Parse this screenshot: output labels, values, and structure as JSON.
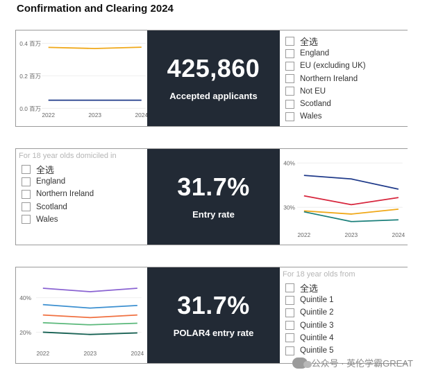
{
  "page": {
    "title": "Confirmation and Clearing 2024"
  },
  "row1": {
    "kpi": {
      "value": "425,860",
      "label": "Accepted applicants"
    },
    "slicer": {
      "items": [
        "全选",
        "England",
        "EU (excluding UK)",
        "Northern Ireland",
        "Not EU",
        "Scotland",
        "Wales"
      ]
    }
  },
  "row2": {
    "slicer": {
      "heading": "For 18 year olds domiciled in",
      "items": [
        "全选",
        "England",
        "Northern Ireland",
        "Scotland",
        "Wales"
      ]
    },
    "kpi": {
      "value": "31.7%",
      "label": "Entry rate"
    }
  },
  "row3": {
    "kpi": {
      "value": "31.7%",
      "label": "POLAR4 entry rate"
    },
    "slicer": {
      "heading": "For 18 year olds from",
      "items": [
        "全选",
        "Quintile 1",
        "Quintile 2",
        "Quintile 3",
        "Quintile 4",
        "Quintile 5"
      ]
    }
  },
  "watermark": {
    "text": "公众号 · 英伦学霸GREAT"
  },
  "chart_data": [
    {
      "type": "line",
      "x": [
        "2022",
        "2023",
        "2024"
      ],
      "yticks": [
        "0.4 百万",
        "0.2 百万",
        "0.0 百万"
      ],
      "ylim": [
        0,
        0.42
      ],
      "series": [
        {
          "color": "#f0a818",
          "values": [
            0.375,
            0.368,
            0.376
          ]
        },
        {
          "color": "#1f3a8a",
          "values": [
            0.05,
            0.05,
            0.05
          ]
        }
      ]
    },
    {
      "type": "line",
      "x": [
        "2022",
        "2023",
        "2024"
      ],
      "yticks": [
        "40%",
        "30%"
      ],
      "ylim": [
        25,
        41
      ],
      "series": [
        {
          "color": "#1f3a8a",
          "values": [
            37.2,
            36.4,
            34.1
          ]
        },
        {
          "color": "#d7263d",
          "values": [
            32.6,
            30.6,
            32.2
          ]
        },
        {
          "color": "#f0a818",
          "values": [
            29.2,
            28.5,
            29.6
          ]
        },
        {
          "color": "#1a7f7a",
          "values": [
            29.0,
            26.8,
            27.2
          ]
        }
      ]
    },
    {
      "type": "line",
      "x": [
        "2022",
        "2023",
        "2024"
      ],
      "yticks": [
        "40%",
        "20%"
      ],
      "ylim": [
        14,
        52
      ],
      "series": [
        {
          "color": "#8a63d2",
          "values": [
            45.5,
            43.5,
            45.5
          ]
        },
        {
          "color": "#3b8fd0",
          "values": [
            36,
            34,
            35.5
          ]
        },
        {
          "color": "#f07040",
          "values": [
            30,
            28.5,
            30
          ]
        },
        {
          "color": "#5ab87a",
          "values": [
            25.5,
            24.3,
            25.2
          ]
        },
        {
          "color": "#125e50",
          "values": [
            20,
            18.7,
            19.6
          ]
        }
      ]
    }
  ]
}
